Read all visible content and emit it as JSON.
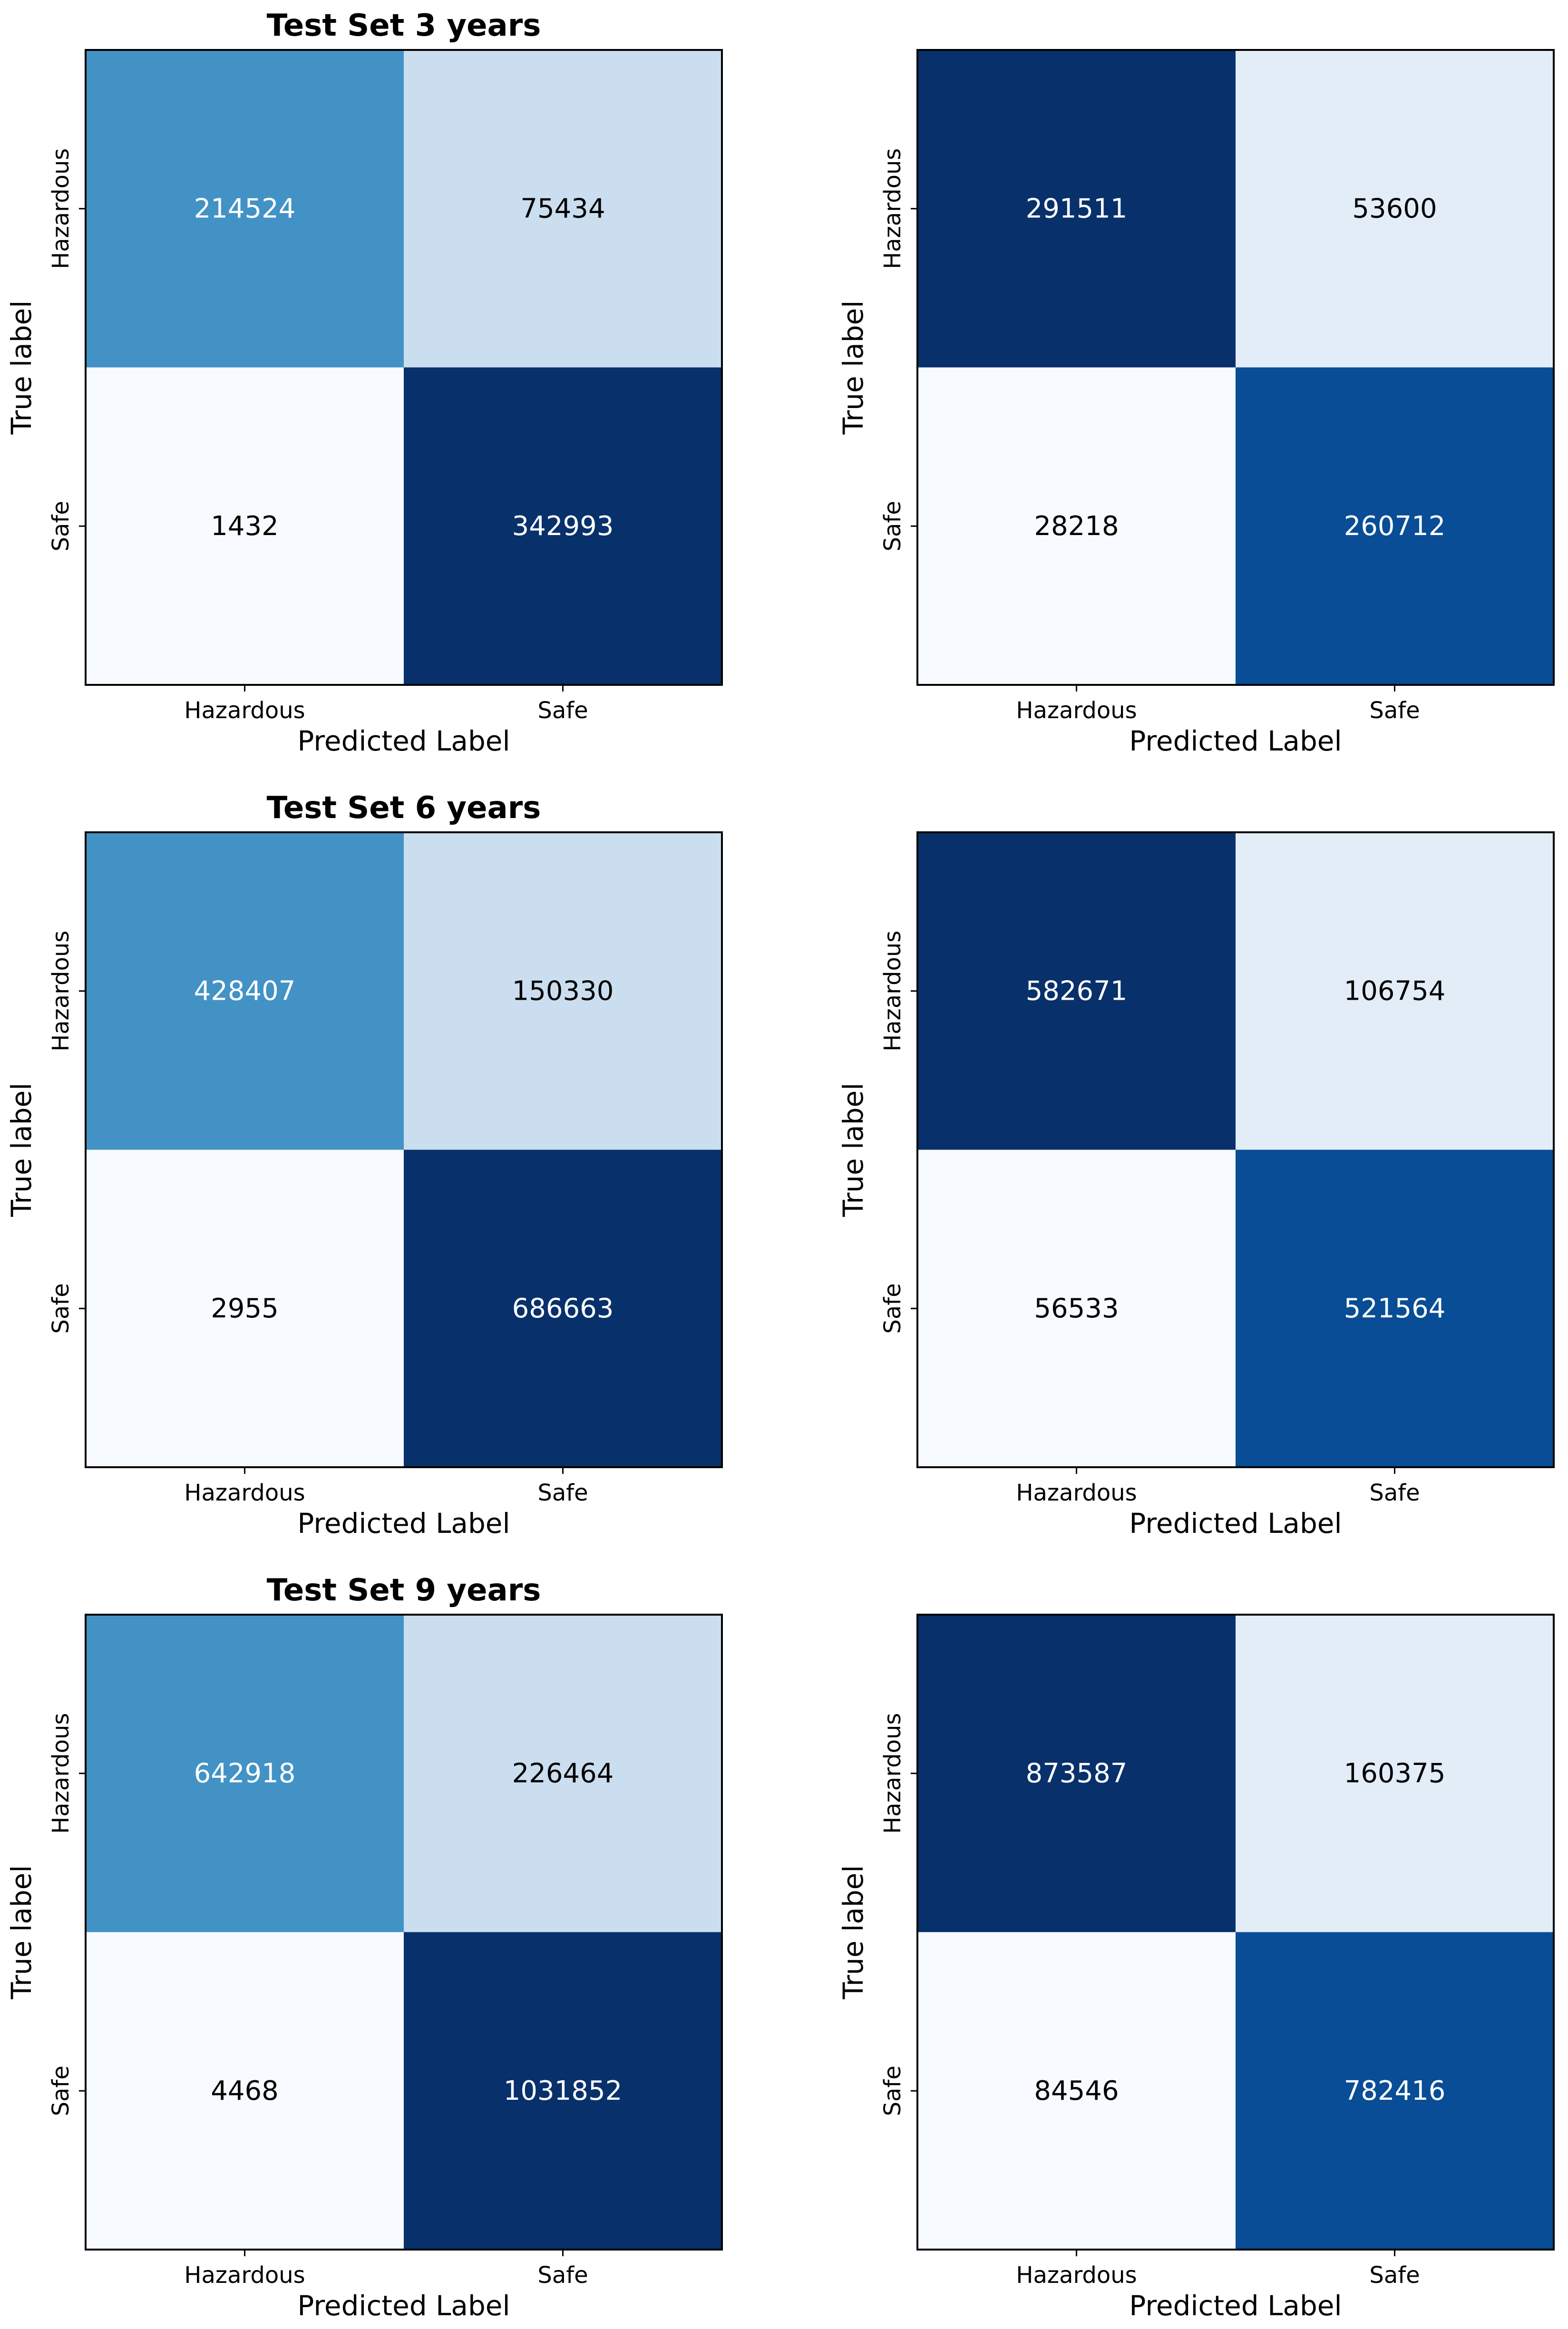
{
  "chart_data": [
    {
      "type": "heatmap",
      "title": "Test Set 3 years",
      "xlabel": "Predicted Label",
      "ylabel": "True label",
      "x_tick_labels": [
        "Hazardous",
        "Safe"
      ],
      "y_tick_labels": [
        "Hazardous",
        "Safe"
      ],
      "colormap": "Blues",
      "cells": [
        [
          214524,
          75434
        ],
        [
          1432,
          342993
        ]
      ],
      "cell_colors": [
        [
          "#4292c6",
          "#cbdeef"
        ],
        [
          "#f7fbff",
          "#08306b"
        ]
      ],
      "text_colors": [
        [
          "#ffffff",
          "#000000"
        ],
        [
          "#000000",
          "#ffffff"
        ]
      ]
    },
    {
      "type": "heatmap",
      "title": "",
      "xlabel": "Predicted Label",
      "ylabel": "True label",
      "x_tick_labels": [
        "Hazardous",
        "Safe"
      ],
      "y_tick_labels": [
        "Hazardous",
        "Safe"
      ],
      "colormap": "Blues",
      "cells": [
        [
          291511,
          53600
        ],
        [
          28218,
          260712
        ]
      ],
      "cell_colors": [
        [
          "#08306b",
          "#e2edf8"
        ],
        [
          "#f7fbff",
          "#084d96"
        ]
      ],
      "text_colors": [
        [
          "#ffffff",
          "#000000"
        ],
        [
          "#000000",
          "#ffffff"
        ]
      ]
    },
    {
      "type": "heatmap",
      "title": "Test Set 6 years",
      "xlabel": "Predicted Label",
      "ylabel": "True label",
      "x_tick_labels": [
        "Hazardous",
        "Safe"
      ],
      "y_tick_labels": [
        "Hazardous",
        "Safe"
      ],
      "colormap": "Blues",
      "cells": [
        [
          428407,
          150330
        ],
        [
          2955,
          686663
        ]
      ],
      "cell_colors": [
        [
          "#4292c6",
          "#cbdeef"
        ],
        [
          "#f7fbff",
          "#08306b"
        ]
      ],
      "text_colors": [
        [
          "#ffffff",
          "#000000"
        ],
        [
          "#000000",
          "#ffffff"
        ]
      ]
    },
    {
      "type": "heatmap",
      "title": "",
      "xlabel": "Predicted Label",
      "ylabel": "True label",
      "x_tick_labels": [
        "Hazardous",
        "Safe"
      ],
      "y_tick_labels": [
        "Hazardous",
        "Safe"
      ],
      "colormap": "Blues",
      "cells": [
        [
          582671,
          106754
        ],
        [
          56533,
          521564
        ]
      ],
      "cell_colors": [
        [
          "#08306b",
          "#e2edf8"
        ],
        [
          "#f7fbff",
          "#084d96"
        ]
      ],
      "text_colors": [
        [
          "#ffffff",
          "#000000"
        ],
        [
          "#000000",
          "#ffffff"
        ]
      ]
    },
    {
      "type": "heatmap",
      "title": "Test Set 9 years",
      "xlabel": "Predicted Label",
      "ylabel": "True label",
      "x_tick_labels": [
        "Hazardous",
        "Safe"
      ],
      "y_tick_labels": [
        "Hazardous",
        "Safe"
      ],
      "colormap": "Blues",
      "cells": [
        [
          642918,
          226464
        ],
        [
          4468,
          1031852
        ]
      ],
      "cell_colors": [
        [
          "#4292c6",
          "#cbdeef"
        ],
        [
          "#f7fbff",
          "#08306b"
        ]
      ],
      "text_colors": [
        [
          "#ffffff",
          "#000000"
        ],
        [
          "#000000",
          "#ffffff"
        ]
      ]
    },
    {
      "type": "heatmap",
      "title": "",
      "xlabel": "Predicted Label",
      "ylabel": "True label",
      "x_tick_labels": [
        "Hazardous",
        "Safe"
      ],
      "y_tick_labels": [
        "Hazardous",
        "Safe"
      ],
      "colormap": "Blues",
      "cells": [
        [
          873587,
          160375
        ],
        [
          84546,
          782416
        ]
      ],
      "cell_colors": [
        [
          "#08306b",
          "#e2edf8"
        ],
        [
          "#f7fbff",
          "#084d96"
        ]
      ],
      "text_colors": [
        [
          "#ffffff",
          "#000000"
        ],
        [
          "#000000",
          "#ffffff"
        ]
      ]
    }
  ]
}
